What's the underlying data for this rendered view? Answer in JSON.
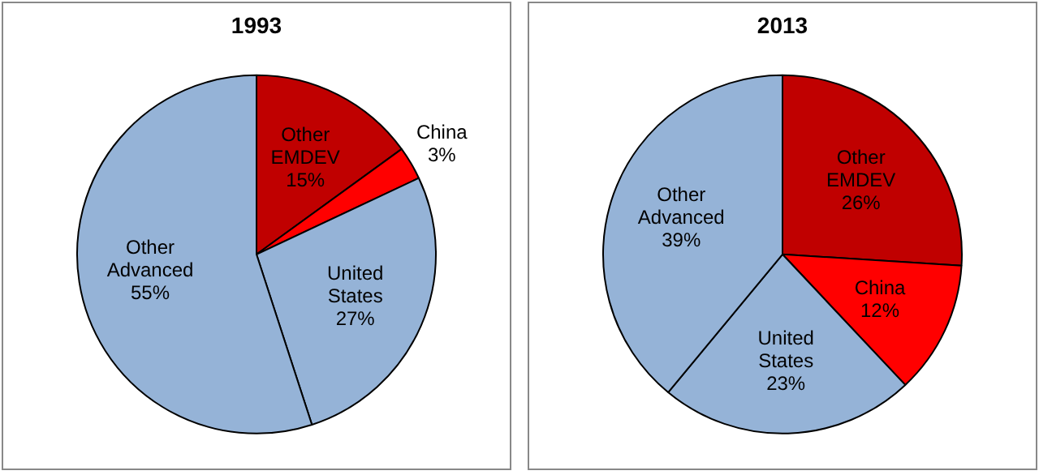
{
  "chart_data": [
    {
      "type": "pie",
      "title": "1993",
      "categories": [
        "Other EMDEV",
        "China",
        "United States",
        "Other Advanced"
      ],
      "values": [
        15,
        3,
        27,
        55
      ],
      "value_labels": [
        "15%",
        "3%",
        "27%",
        "55%"
      ],
      "colors": [
        "#c00000",
        "#ff0000",
        "#95b3d7",
        "#95b3d7"
      ]
    },
    {
      "type": "pie",
      "title": "2013",
      "categories": [
        "Other EMDEV",
        "China",
        "United States",
        "Other Advanced"
      ],
      "values": [
        26,
        12,
        23,
        39
      ],
      "value_labels": [
        "26%",
        "12%",
        "23%",
        "39%"
      ],
      "colors": [
        "#c00000",
        "#ff0000",
        "#95b3d7",
        "#95b3d7"
      ]
    }
  ]
}
